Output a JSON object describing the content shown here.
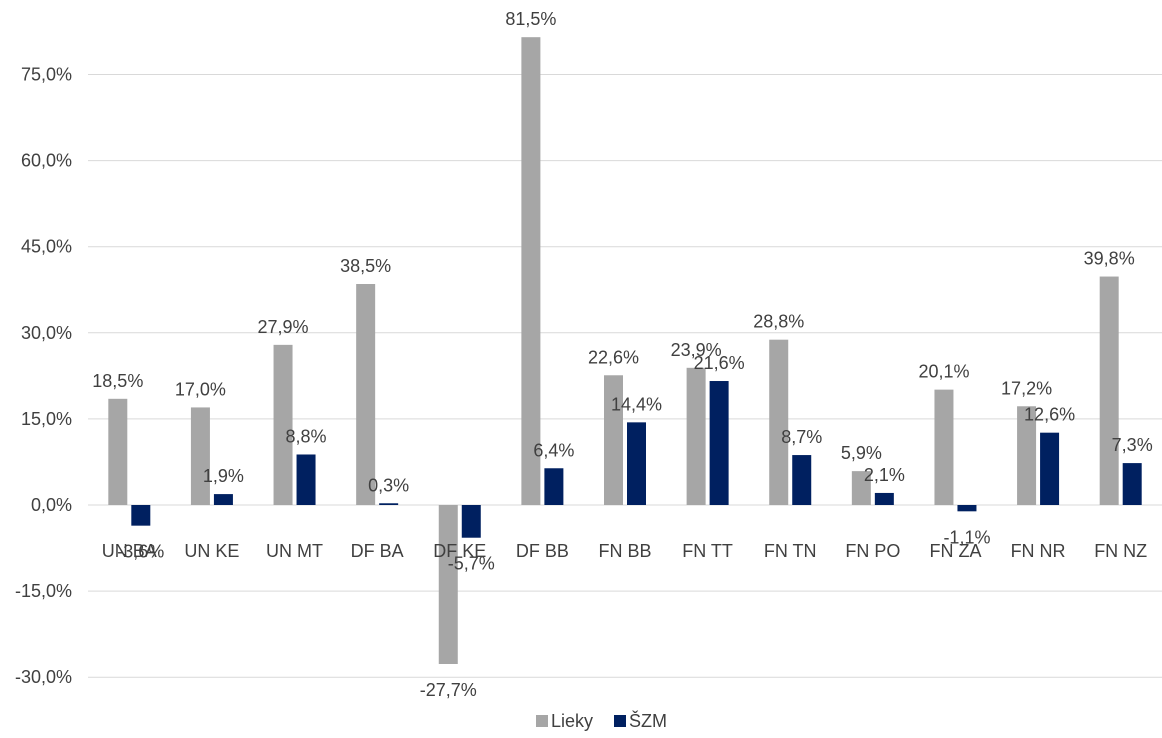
{
  "chart_data": {
    "type": "bar",
    "categories": [
      "UN BA",
      "UN KE",
      "UN MT",
      "DF BA",
      "DF KE",
      "DF BB",
      "FN BB",
      "FN TT",
      "FN TN",
      "FN PO",
      "FN ZA",
      "FN NR",
      "FN NZ"
    ],
    "series": [
      {
        "name": "Lieky",
        "color": "#a6a6a6",
        "values": [
          18.5,
          17.0,
          27.9,
          38.5,
          -27.7,
          81.5,
          22.6,
          23.9,
          28.8,
          5.9,
          20.1,
          17.2,
          39.8
        ],
        "labels": [
          "18,5%",
          "17,0%",
          "27,9%",
          "38,5%",
          "-27,7%",
          "81,5%",
          "22,6%",
          "23,9%",
          "28,8%",
          "5,9%",
          "20,1%",
          "17,2%",
          "39,8%"
        ]
      },
      {
        "name": "ŠZM",
        "color": "#002060",
        "values": [
          -3.6,
          1.9,
          8.8,
          0.3,
          -5.7,
          6.4,
          14.4,
          21.6,
          8.7,
          2.1,
          -1.1,
          12.6,
          7.3
        ],
        "labels": [
          "-3,6%",
          "1,9%",
          "8,8%",
          "0,3%",
          "-5,7%",
          "6,4%",
          "14,4%",
          "21,6%",
          "8,7%",
          "2,1%",
          "-1,1%",
          "12,6%",
          "7,3%"
        ]
      }
    ],
    "yticks": [
      -30,
      -15,
      0,
      15,
      30,
      45,
      60,
      75
    ],
    "ytick_labels": [
      "-30,0%",
      "-15,0%",
      "0,0%",
      "15,0%",
      "30,0%",
      "45,0%",
      "60,0%",
      "75,0%"
    ],
    "ylim": [
      -30,
      75
    ],
    "grid": true,
    "legend_position": "bottom",
    "title": "",
    "xlabel": "",
    "ylabel": ""
  }
}
